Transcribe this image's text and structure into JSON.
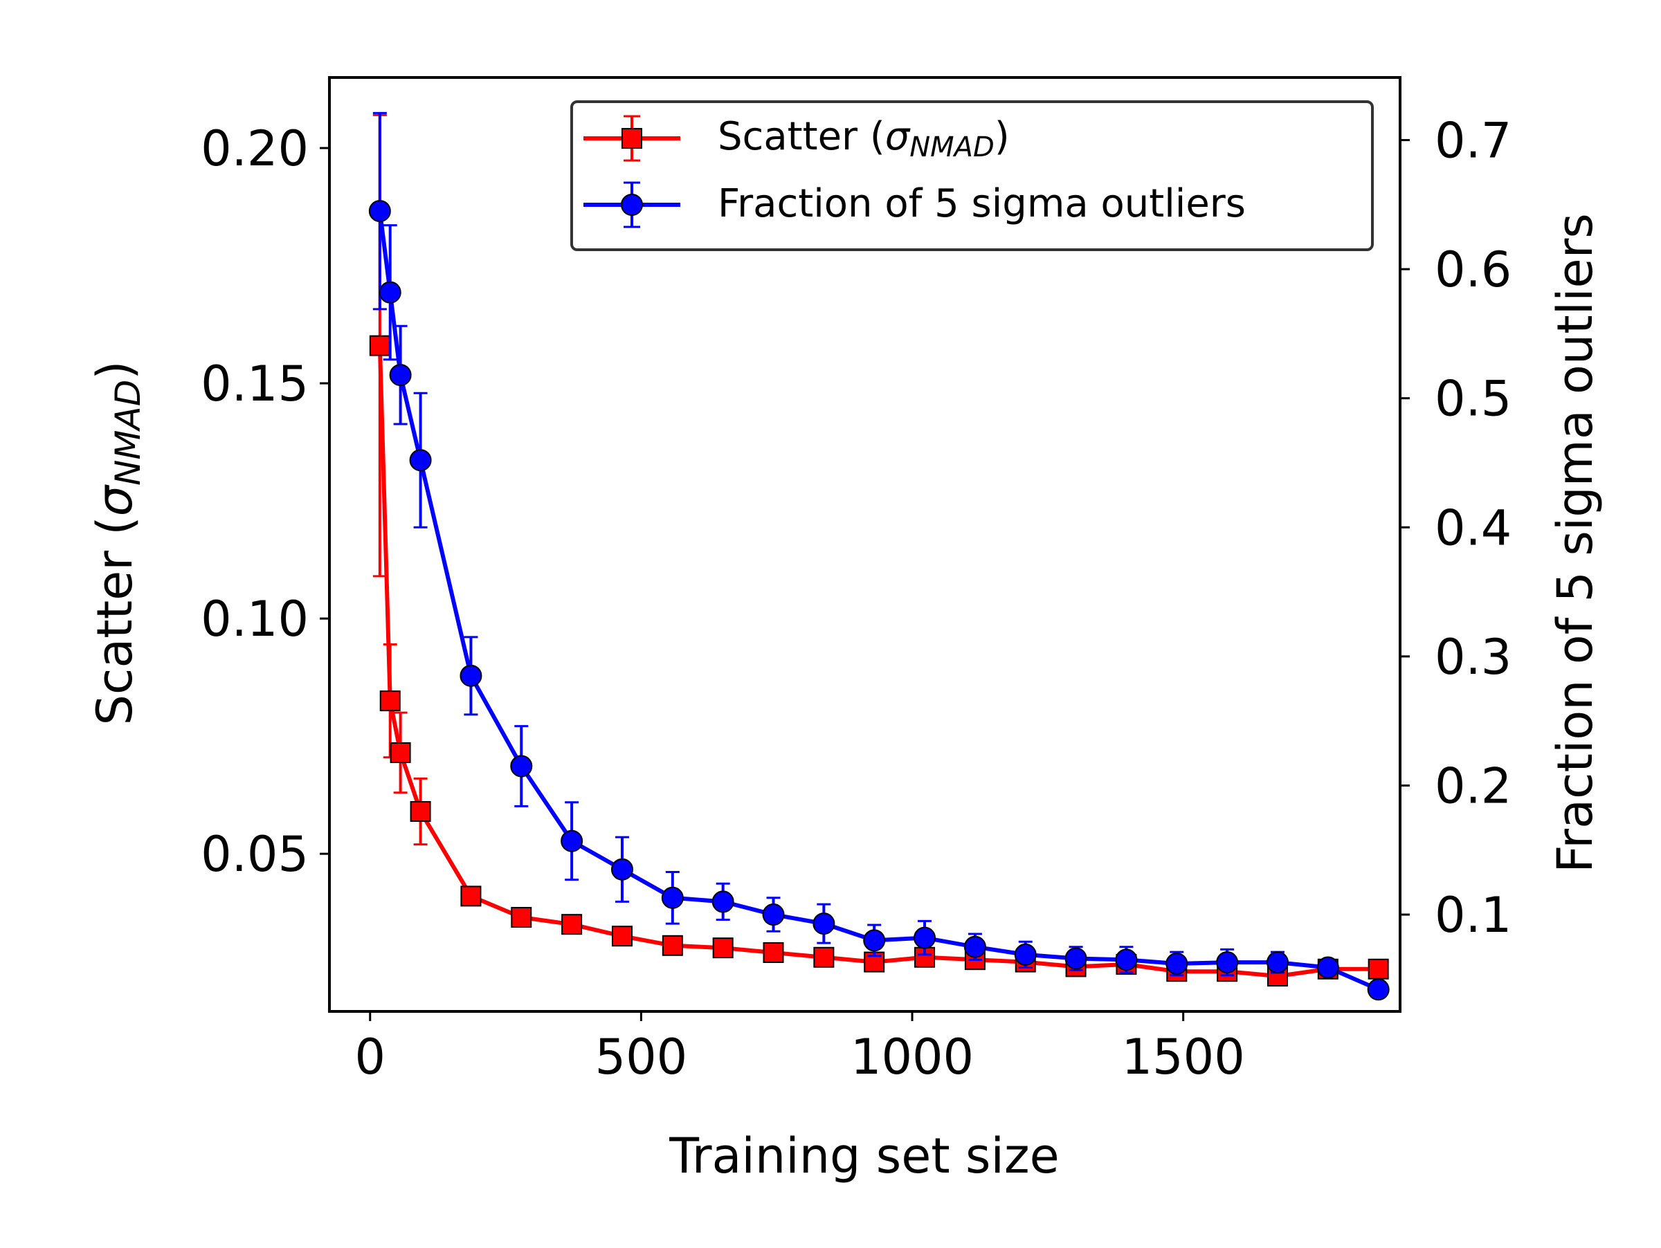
{
  "chart_data": {
    "type": "line",
    "xlabel": "Training set size",
    "ylabel_left": {
      "main": "Scatter (",
      "sym": "σ",
      "sub": "NMAD",
      "close": ")"
    },
    "ylabel_right": "Fraction of 5 sigma outliers",
    "xlim": [
      -75,
      1900
    ],
    "ylim_left": [
      0.0165,
      0.215
    ],
    "ylim_right": [
      0.025,
      0.7485
    ],
    "xticks": [
      0,
      500,
      1000,
      1500
    ],
    "yticks_left": [
      0.05,
      0.1,
      0.15,
      0.2
    ],
    "yticks_right": [
      0.1,
      0.2,
      0.3,
      0.4,
      0.5,
      0.6,
      0.7
    ],
    "tick_labels": {
      "x": [
        "0",
        "500",
        "1000",
        "1500"
      ],
      "y_left": [
        "0.05",
        "0.10",
        "0.15",
        "0.20"
      ],
      "y_right": [
        "0.1",
        "0.2",
        "0.3",
        "0.4",
        "0.5",
        "0.6",
        "0.7"
      ]
    },
    "legend": {
      "position": "top-right",
      "items": [
        {
          "label_main": "Scatter (",
          "sym": "σ",
          "sub": "NMAD",
          "close": ")"
        },
        {
          "label": "Fraction of 5 sigma outliers"
        }
      ]
    },
    "series": [
      {
        "axis": "left",
        "color": "#ff0000",
        "marker": "square",
        "x": [
          18,
          37,
          56,
          93,
          186,
          279,
          372,
          465,
          558,
          651,
          744,
          837,
          930,
          1023,
          1116,
          1209,
          1302,
          1395,
          1488,
          1581,
          1674,
          1767,
          1860
        ],
        "y": [
          0.158,
          0.0825,
          0.0715,
          0.059,
          0.041,
          0.0365,
          0.035,
          0.0325,
          0.0305,
          0.03,
          0.029,
          0.028,
          0.027,
          0.028,
          0.0275,
          0.027,
          0.026,
          0.0265,
          0.025,
          0.025,
          0.024,
          0.0255,
          0.0255
        ],
        "err": [
          0.049,
          0.012,
          0.0085,
          0.007,
          0,
          0,
          0,
          0,
          0,
          0,
          0,
          0,
          0,
          0,
          0,
          0,
          0,
          0,
          0,
          0,
          0,
          0,
          0
        ]
      },
      {
        "axis": "right",
        "color": "#0000ff",
        "marker": "circle",
        "x": [
          18,
          37,
          56,
          93,
          186,
          279,
          372,
          465,
          558,
          651,
          744,
          837,
          930,
          1023,
          1116,
          1209,
          1302,
          1395,
          1488,
          1581,
          1674,
          1767,
          1860
        ],
        "y": [
          0.645,
          0.582,
          0.518,
          0.452,
          0.285,
          0.215,
          0.157,
          0.135,
          0.113,
          0.11,
          0.1,
          0.093,
          0.08,
          0.082,
          0.075,
          0.069,
          0.066,
          0.065,
          0.062,
          0.063,
          0.063,
          0.059,
          0.042
        ],
        "err": [
          0.076,
          0.052,
          0.038,
          0.052,
          0.03,
          0.031,
          0.03,
          0.025,
          0.02,
          0.014,
          0.013,
          0.015,
          0.012,
          0.013,
          0.01,
          0.01,
          0.009,
          0.01,
          0.009,
          0.01,
          0.008,
          0.006,
          0.004
        ]
      }
    ]
  }
}
